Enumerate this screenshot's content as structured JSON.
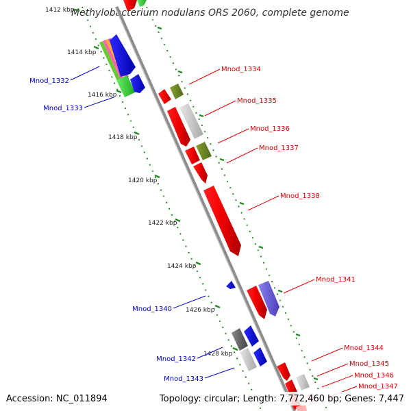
{
  "title": "Methylobacterium nodulans ORS 2060, complete genome",
  "footer": {
    "accession": "Accession: NC_011894",
    "stats": "Topology: circular; Length: 7,772,460 bp; Genes: 7,447"
  },
  "colors": {
    "backbone": "#8c8c8c",
    "tick": "#2a8a2a",
    "forward_label": "#dd0000",
    "reverse_label": "#0000cc"
  },
  "kbp_ticks": [
    "1412 kbp",
    "1414 kbp",
    "1416 kbp",
    "1418 kbp",
    "1420 kbp",
    "1422 kbp",
    "1424 kbp",
    "1426 kbp",
    "1428 kbp"
  ],
  "gene_labels": {
    "reverse": [
      "Mnod_1332",
      "Mnod_1333",
      "Mnod_1340",
      "Mnod_1342",
      "Mnod_1343"
    ],
    "forward": [
      "Mnod_1334",
      "Mnod_1335",
      "Mnod_1336",
      "Mnod_1337",
      "Mnod_1338",
      "Mnod_1341",
      "Mnod_1344",
      "Mnod_1345",
      "Mnod_1346",
      "Mnod_1347"
    ]
  }
}
